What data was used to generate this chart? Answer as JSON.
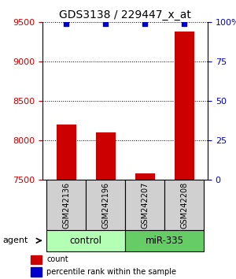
{
  "title": "GDS3138 / 229447_x_at",
  "samples": [
    "GSM242136",
    "GSM242196",
    "GSM242207",
    "GSM242208"
  ],
  "counts": [
    8200,
    8100,
    7580,
    9380
  ],
  "percentile_ranks": [
    99,
    99,
    99,
    99
  ],
  "groups": [
    "control",
    "control",
    "miR-335",
    "miR-335"
  ],
  "group_colors": {
    "control": "#b3ffb3",
    "miR-335": "#66cc66"
  },
  "ylim": [
    7500,
    9500
  ],
  "yticks": [
    7500,
    8000,
    8500,
    9000,
    9500
  ],
  "y2lim": [
    0,
    100
  ],
  "y2ticks": [
    0,
    25,
    50,
    75,
    100
  ],
  "y2ticklabels": [
    "0",
    "25",
    "50",
    "75",
    "100%"
  ],
  "bar_color": "#cc0000",
  "dot_color": "#0000cc",
  "bar_width": 0.5,
  "left_tick_color": "#cc0000",
  "right_tick_color": "#0000cc",
  "grid_color": "#000000",
  "agent_label": "agent",
  "legend_count_label": "count",
  "legend_pct_label": "percentile rank within the sample",
  "title_fontsize": 10,
  "tick_fontsize": 8,
  "sample_fontsize": 7,
  "group_fontsize": 8.5,
  "agent_fontsize": 8,
  "legend_fontsize": 7
}
